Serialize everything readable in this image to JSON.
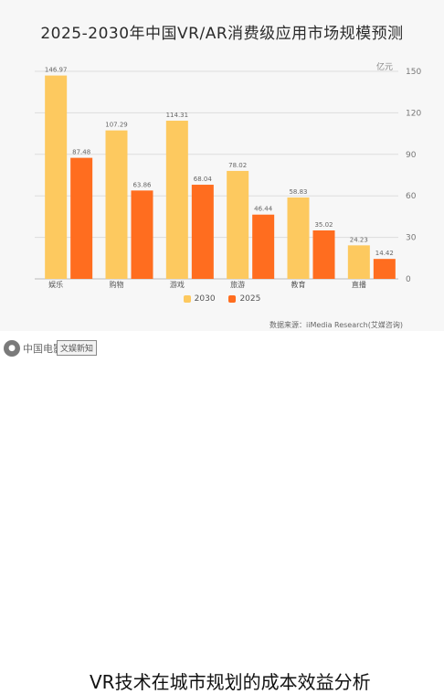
{
  "colors": {
    "series_2030": "#fdc95f",
    "series_2025": "#ff6d1f",
    "background": "#f7f7f7"
  },
  "watermark": {
    "text": "中国电影资料馆",
    "badge": "文娱新知"
  },
  "caption": "VR技术在城市规划的成本效益分析",
  "chart_data": {
    "type": "bar",
    "title": "2025-2030年中国VR/AR消费级应用市场规模预测",
    "unit": "亿元",
    "categories": [
      "娱乐",
      "购物",
      "游戏",
      "旅游",
      "教育",
      "直播"
    ],
    "series": [
      {
        "name": "2030",
        "values": [
          146.97,
          107.29,
          114.31,
          78.02,
          58.83,
          24.23
        ],
        "labels": [
          "146.97",
          "107.29",
          "114.31",
          "78.02",
          "58.83",
          "24.23"
        ]
      },
      {
        "name": "2025",
        "values": [
          87.48,
          63.86,
          68.04,
          46.44,
          35.02,
          14.42
        ],
        "labels": [
          "87.48",
          "63.86",
          "68.04",
          "46.44",
          "35.02",
          "14.42"
        ]
      }
    ],
    "ylim": [
      0,
      150
    ],
    "yticks": [
      0,
      30,
      60,
      90,
      120,
      150
    ],
    "ytick_labels": [
      "0",
      "30",
      "60",
      "90",
      "120",
      "150"
    ],
    "y_axis_side": "right",
    "legend_position": "bottom",
    "grid": true,
    "source": "数据来源：iiMedia Research(艾媒咨询)"
  }
}
